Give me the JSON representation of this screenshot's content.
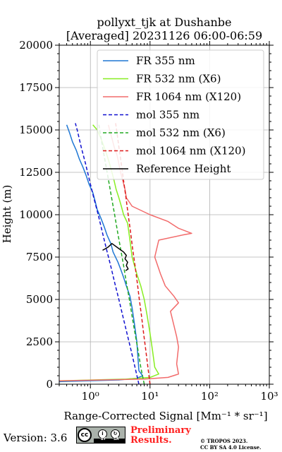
{
  "title": {
    "line1": "pollyxt_tjk at Dushanbe",
    "line2": "[Averaged] 20231126 06:00-06:59"
  },
  "footer": {
    "version": "Version: 3.6",
    "preliminary_line1": "Preliminary",
    "preliminary_line2": "Results.",
    "copyright_line1": "© TROPOS 2023.",
    "copyright_line2": "CC BY SA 4.0 License.",
    "cc_logo": "cc-by-sa-license-icon",
    "cc_logo_text": "cc",
    "cc_logo_by": "BY",
    "cc_logo_sa": "SA"
  },
  "chart_data": {
    "type": "line",
    "title": "pollyxt_tjk at Dushanbe [Averaged] 20231126 06:00-06:59",
    "xlabel": "Range-Corrected Signal [Mm⁻¹ * sr⁻¹]",
    "ylabel": "Height (m)",
    "xscale": "log",
    "xlim": [
      0.3,
      1000
    ],
    "ylim": [
      0,
      20000
    ],
    "xticks": [
      1,
      10,
      100,
      1000
    ],
    "xtick_labels": [
      "10⁰",
      "10¹",
      "10²",
      "10³"
    ],
    "yticks": [
      0,
      2500,
      5000,
      7500,
      10000,
      12500,
      15000,
      17500,
      20000
    ],
    "ytick_labels": [
      "0",
      "2500",
      "5000",
      "7500",
      "10000",
      "12500",
      "15000",
      "17500",
      "20000"
    ],
    "grid": true,
    "legend_position": "top-right",
    "series": [
      {
        "name": "FR 355 nm",
        "color": "#1f77d4",
        "style": "solid",
        "points": [
          [
            0.3,
            150
          ],
          [
            3.0,
            250
          ],
          [
            6.0,
            350
          ],
          [
            7.5,
            500
          ],
          [
            6.5,
            800
          ],
          [
            6.3,
            1500
          ],
          [
            6.0,
            2500
          ],
          [
            5.5,
            3500
          ],
          [
            5.0,
            4500
          ],
          [
            4.6,
            5200
          ],
          [
            4.0,
            5800
          ],
          [
            3.6,
            6300
          ],
          [
            3.2,
            6800
          ],
          [
            2.9,
            7200
          ],
          [
            2.4,
            7800
          ],
          [
            2.2,
            8300
          ],
          [
            1.9,
            8800
          ],
          [
            1.7,
            9300
          ],
          [
            1.5,
            9800
          ],
          [
            1.3,
            10300
          ],
          [
            1.2,
            10800
          ],
          [
            1.1,
            11300
          ],
          [
            0.95,
            11800
          ],
          [
            0.85,
            12300
          ],
          [
            0.75,
            12800
          ],
          [
            0.65,
            13300
          ],
          [
            0.58,
            13800
          ],
          [
            0.5,
            14300
          ],
          [
            0.45,
            14800
          ],
          [
            0.4,
            15300
          ]
        ]
      },
      {
        "name": "FR 532 nm (X6)",
        "color": "#88ee22",
        "style": "solid",
        "points": [
          [
            0.3,
            200
          ],
          [
            4.0,
            300
          ],
          [
            10.0,
            400
          ],
          [
            14.0,
            600
          ],
          [
            12.0,
            1000
          ],
          [
            11.0,
            2000
          ],
          [
            10.0,
            3000
          ],
          [
            9.0,
            4000
          ],
          [
            8.0,
            5000
          ],
          [
            7.0,
            5800
          ],
          [
            6.0,
            6500
          ],
          [
            5.0,
            7500
          ],
          [
            4.6,
            8500
          ],
          [
            4.2,
            9500
          ],
          [
            3.6,
            10000
          ],
          [
            3.3,
            10500
          ],
          [
            3.0,
            11000
          ],
          [
            2.7,
            11500
          ],
          [
            2.5,
            12000
          ],
          [
            2.3,
            12500
          ],
          [
            2.1,
            13000
          ],
          [
            1.9,
            13500
          ],
          [
            1.7,
            14000
          ],
          [
            1.5,
            14500
          ],
          [
            1.3,
            15000
          ],
          [
            1.1,
            15300
          ]
        ]
      },
      {
        "name": "FR 1064 nm (X120)",
        "color": "#f26b6b",
        "style": "solid",
        "points": [
          [
            0.3,
            200
          ],
          [
            8.0,
            300
          ],
          [
            20.0,
            400
          ],
          [
            30.0,
            600
          ],
          [
            28.0,
            1200
          ],
          [
            30.0,
            2200
          ],
          [
            28.0,
            2800
          ],
          [
            25.0,
            3500
          ],
          [
            22.0,
            4300
          ],
          [
            30.0,
            4800
          ],
          [
            25.0,
            5200
          ],
          [
            18.0,
            5800
          ],
          [
            15.0,
            6500
          ],
          [
            12.0,
            7500
          ],
          [
            14.0,
            8500
          ],
          [
            35.0,
            8800
          ],
          [
            50.0,
            8900
          ],
          [
            30.0,
            9200
          ],
          [
            20.0,
            9600
          ],
          [
            10.0,
            10000
          ],
          [
            5.0,
            10500
          ],
          [
            4.0,
            11000
          ],
          [
            3.8,
            11500
          ],
          [
            3.5,
            12000
          ],
          [
            3.2,
            12500
          ],
          [
            3.0,
            13000
          ],
          [
            2.8,
            13500
          ],
          [
            2.5,
            14000
          ],
          [
            2.3,
            14500
          ],
          [
            2.1,
            15000
          ],
          [
            2.0,
            15300
          ]
        ]
      },
      {
        "name": "mol 355 nm",
        "color": "#1010d0",
        "style": "dashed",
        "points": [
          [
            6.5,
            0
          ],
          [
            5.6,
            1000
          ],
          [
            4.8,
            2000
          ],
          [
            4.1,
            3000
          ],
          [
            3.5,
            4000
          ],
          [
            3.0,
            5000
          ],
          [
            2.55,
            6000
          ],
          [
            2.18,
            7000
          ],
          [
            1.85,
            8000
          ],
          [
            1.58,
            9000
          ],
          [
            1.35,
            10000
          ],
          [
            1.14,
            11000
          ],
          [
            0.97,
            12000
          ],
          [
            0.83,
            13000
          ],
          [
            0.7,
            14000
          ],
          [
            0.6,
            15000
          ],
          [
            0.56,
            15400
          ]
        ]
      },
      {
        "name": "mol 532 nm (X6)",
        "color": "#22aa22",
        "style": "dashed",
        "points": [
          [
            8.0,
            0
          ],
          [
            7.0,
            1000
          ],
          [
            6.3,
            2000
          ],
          [
            5.6,
            3000
          ],
          [
            5.0,
            4000
          ],
          [
            4.5,
            5000
          ],
          [
            4.0,
            6000
          ],
          [
            3.6,
            7000
          ],
          [
            3.2,
            8000
          ],
          [
            2.85,
            9000
          ],
          [
            2.55,
            10000
          ],
          [
            2.27,
            11000
          ],
          [
            2.02,
            12000
          ],
          [
            1.8,
            13000
          ],
          [
            1.6,
            14000
          ],
          [
            1.43,
            15000
          ],
          [
            1.38,
            15400
          ]
        ]
      },
      {
        "name": "mol 1064 nm (X120)",
        "color": "#dd1a1a",
        "style": "dashed",
        "points": [
          [
            10.0,
            0
          ],
          [
            9.2,
            1000
          ],
          [
            8.5,
            2000
          ],
          [
            7.8,
            3000
          ],
          [
            7.2,
            4000
          ],
          [
            6.6,
            5000
          ],
          [
            6.1,
            6000
          ],
          [
            5.6,
            7000
          ],
          [
            5.1,
            8000
          ],
          [
            4.7,
            9000
          ],
          [
            4.3,
            10000
          ],
          [
            3.95,
            11000
          ],
          [
            3.6,
            12000
          ],
          [
            3.3,
            13000
          ],
          [
            3.0,
            14000
          ],
          [
            2.75,
            15000
          ],
          [
            2.65,
            15400
          ]
        ]
      },
      {
        "name": "Reference Height",
        "color": "#000000",
        "style": "solid",
        "points": [
          [
            1.6,
            7900
          ],
          [
            1.8,
            8000
          ],
          [
            2.0,
            8100
          ],
          [
            2.3,
            8300
          ],
          [
            3.0,
            8000
          ],
          [
            3.6,
            7800
          ],
          [
            4.0,
            7600
          ],
          [
            3.8,
            7400
          ],
          [
            4.2,
            7200
          ],
          [
            4.0,
            7000
          ],
          [
            4.3,
            6800
          ],
          [
            3.9,
            6700
          ]
        ]
      }
    ]
  }
}
